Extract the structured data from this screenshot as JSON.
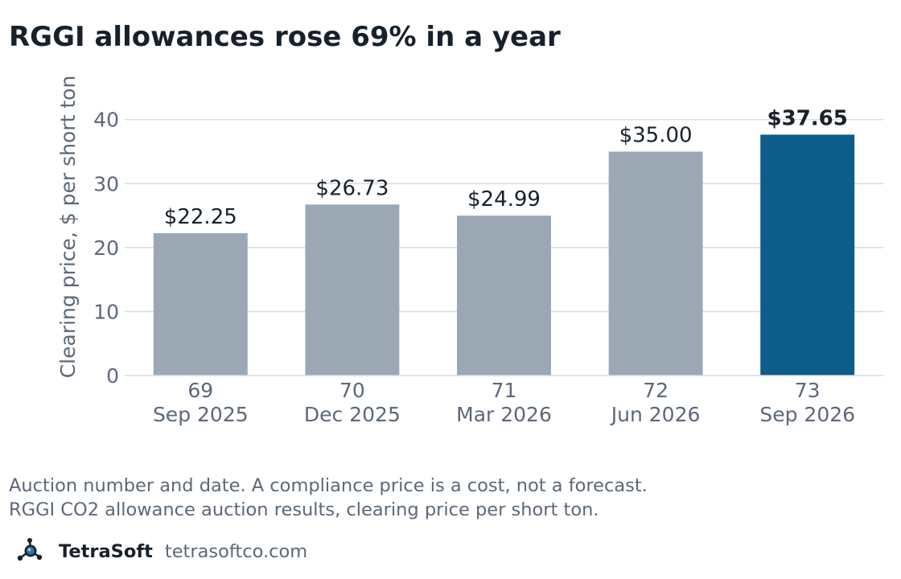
{
  "title": "RGGI allowances rose 69% in a year",
  "chart_data": {
    "type": "bar",
    "ylabel": "Clearing price, $ per short ton",
    "ylim": [
      0,
      46
    ],
    "yticks": [
      0,
      10,
      20,
      30,
      40
    ],
    "grid": true,
    "categories": [
      {
        "number": "69",
        "date": "Sep 2025"
      },
      {
        "number": "70",
        "date": "Dec 2025"
      },
      {
        "number": "71",
        "date": "Mar 2026"
      },
      {
        "number": "72",
        "date": "Jun 2026"
      },
      {
        "number": "73",
        "date": "Sep 2026"
      }
    ],
    "values": [
      22.25,
      26.73,
      24.99,
      35.0,
      37.65
    ],
    "value_labels": [
      "$22.25",
      "$26.73",
      "$24.99",
      "$35.00",
      "$37.65"
    ],
    "highlight_index": 4,
    "colors": {
      "bar": "#9ba8b4",
      "highlight": "#0d5c8a",
      "grid": "#d7dce3",
      "axis_text": "#5c6878",
      "label_text": "#17212b"
    }
  },
  "notes": {
    "line1": "Auction number and date. A compliance price is a cost, not a forecast.",
    "line2": "RGGI CO2 allowance auction results, clearing price per short ton."
  },
  "footer": {
    "icon": "molecule-logo-icon",
    "brand": "TetraSoft",
    "site": "tetrasoftco.com"
  }
}
